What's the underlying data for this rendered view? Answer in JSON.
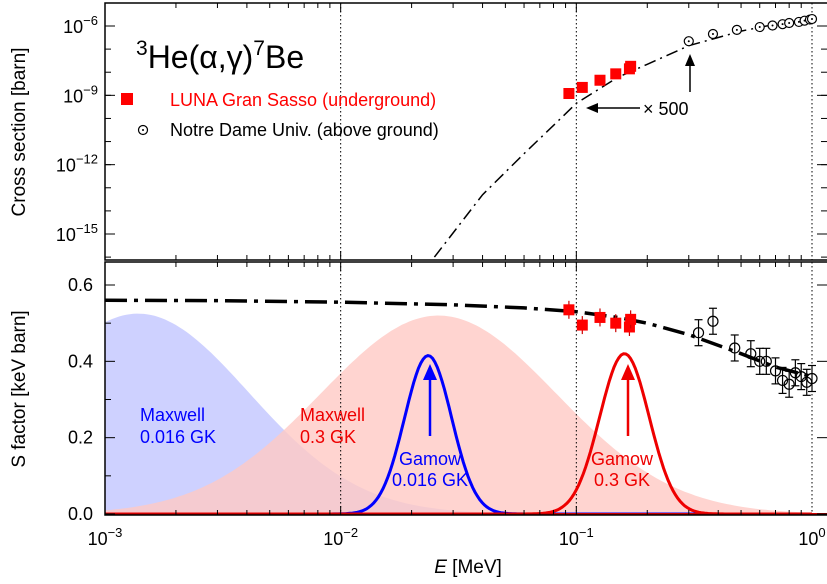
{
  "chart_data": [
    {
      "type": "scatter",
      "reaction": {
        "pre": "3",
        "base": "He(α,γ)",
        "pre2": "7",
        "tail": "Be"
      },
      "ylabel": "Cross section [barn]",
      "xscale": "log",
      "yscale": "log",
      "xlim": [
        0.001,
        1.0
      ],
      "ylim": [
        1e-16,
        1e-05
      ],
      "yticks": [
        {
          "value": 1e-06,
          "base": "10",
          "exp": "−6"
        },
        {
          "value": 1e-09,
          "base": "10",
          "exp": "−9"
        },
        {
          "value": 1e-12,
          "base": "10",
          "exp": "−12"
        },
        {
          "value": 1e-15,
          "base": "10",
          "exp": "−15"
        }
      ],
      "annotation": "× 500",
      "series": [
        {
          "name": "LUNA Gran Sasso (underground)",
          "color": "#ff0000",
          "marker": "square",
          "x": [
            0.093,
            0.106,
            0.126,
            0.147,
            0.168,
            0.17
          ],
          "y": [
            1.2e-09,
            2.2e-09,
            4.5e-09,
            8.5e-09,
            1.4e-08,
            1.8e-08
          ]
        },
        {
          "name": "Notre Dame Univ. (above ground)",
          "color": "#000000",
          "marker": "circle-dot",
          "x": [
            0.3,
            0.38,
            0.48,
            0.6,
            0.68,
            0.75,
            0.8,
            0.88,
            0.93,
            0.98,
            1.0
          ],
          "y": [
            2.2e-07,
            4.5e-07,
            6.8e-07,
            9e-07,
            1.05e-06,
            1.2e-06,
            1.35e-06,
            1.5e-06,
            1.7e-06,
            1.9e-06,
            2e-06
          ]
        }
      ],
      "model_curve": {
        "style": "dash-dot",
        "x": [
          0.025,
          0.04,
          0.06,
          0.08,
          0.1,
          0.15,
          0.2,
          0.3,
          0.5,
          0.7,
          1.0
        ],
        "y": [
          1e-16,
          5e-14,
          3e-12,
          5e-11,
          4.5e-10,
          6e-09,
          2.2e-08,
          1.4e-07,
          6e-07,
          1.2e-06,
          2e-06
        ]
      }
    },
    {
      "type": "scatter",
      "ylabel": "S factor [keV barn]",
      "xlabel_italic": "E",
      "xlabel_rest": " [MeV]",
      "xscale": "log",
      "xlim": [
        0.001,
        1.0
      ],
      "ylim": [
        0.0,
        0.65
      ],
      "xticks": [
        {
          "value": 0.001,
          "base": "10",
          "exp": "−3"
        },
        {
          "value": 0.01,
          "base": "10",
          "exp": "−2"
        },
        {
          "value": 0.1,
          "base": "10",
          "exp": "−1"
        },
        {
          "value": 1.0,
          "base": "10",
          "exp": "0"
        }
      ],
      "yticks": [
        {
          "value": 0.0,
          "label": "0.0"
        },
        {
          "value": 0.2,
          "label": "0.2"
        },
        {
          "value": 0.4,
          "label": "0.4"
        },
        {
          "value": 0.6,
          "label": "0.6"
        }
      ],
      "luna": {
        "x": [
          0.093,
          0.106,
          0.126,
          0.147,
          0.168,
          0.17
        ],
        "y": [
          0.535,
          0.495,
          0.515,
          0.5,
          0.49,
          0.51
        ]
      },
      "nd": {
        "x": [
          0.33,
          0.38,
          0.47,
          0.55,
          0.6,
          0.64,
          0.7,
          0.75,
          0.8,
          0.85,
          0.9,
          0.95,
          1.0
        ],
        "y": [
          0.475,
          0.505,
          0.435,
          0.42,
          0.4,
          0.4,
          0.375,
          0.35,
          0.34,
          0.37,
          0.36,
          0.345,
          0.355
        ]
      },
      "model_curve": {
        "x": [
          0.001,
          0.003,
          0.01,
          0.03,
          0.06,
          0.1,
          0.15,
          0.2,
          0.3,
          0.5,
          0.7,
          1.0
        ],
        "y": [
          0.56,
          0.559,
          0.555,
          0.548,
          0.54,
          0.53,
          0.515,
          0.5,
          0.47,
          0.42,
          0.385,
          0.36
        ]
      },
      "maxwell_low": {
        "label1": "Maxwell",
        "label2": "0.016 GK",
        "color": "#c9ccff",
        "peak_x": 0.00138,
        "peak_y": 0.525
      },
      "maxwell_high": {
        "label1": "Maxwell",
        "label2": "0.3 GK",
        "color": "#ffc9c4",
        "peak_x": 0.026,
        "peak_y": 0.52
      },
      "gamow_low": {
        "label1": "Gamow",
        "label2": "0.016 GK",
        "color": "#0000ff",
        "peak_x": 0.0235,
        "peak_y": 0.415
      },
      "gamow_high": {
        "label1": "Gamow",
        "label2": "0.3 GK",
        "color": "#ee0000",
        "peak_x": 0.16,
        "peak_y": 0.42
      }
    }
  ]
}
